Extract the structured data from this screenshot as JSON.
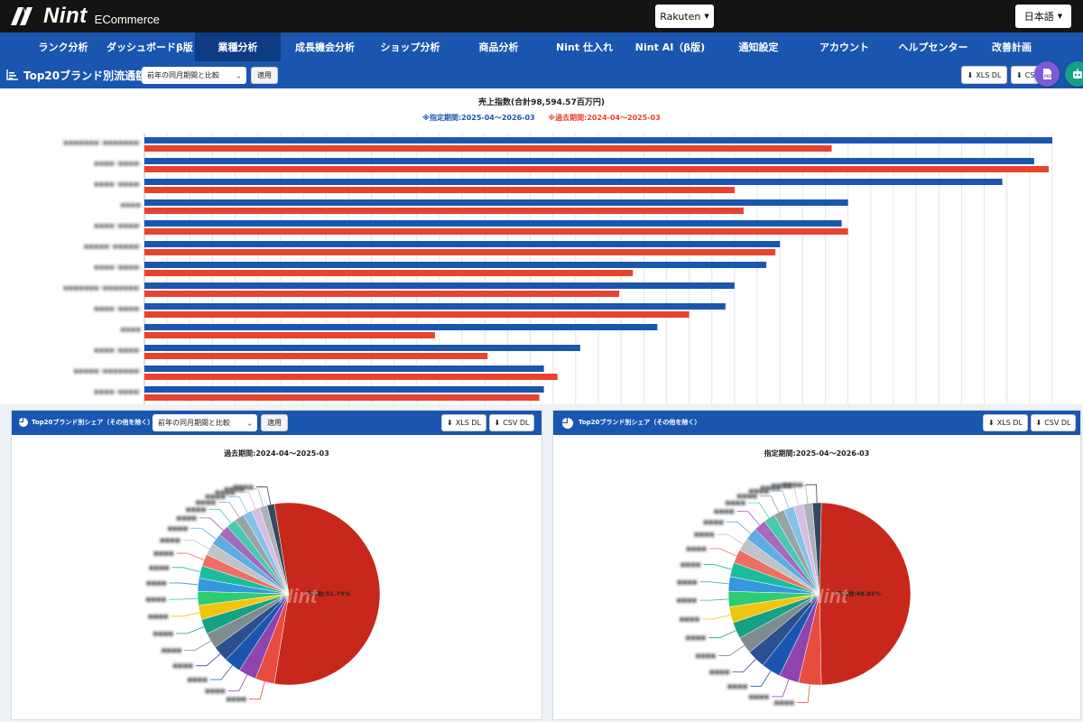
{
  "header": {
    "logo_text": "Nint",
    "logo_sub": "ECommerce",
    "mall_label": "Rakuten",
    "lang_label": "日本語"
  },
  "nav": [
    {
      "label": "ランク分析",
      "active": false
    },
    {
      "label": "ダッシュボードβ版",
      "active": false
    },
    {
      "label": "業種分析",
      "active": true
    },
    {
      "label": "成長機会分析",
      "active": false
    },
    {
      "label": "ショップ分析",
      "active": false
    },
    {
      "label": "商品分析",
      "active": false
    },
    {
      "label": "Nint 仕入れ",
      "active": false
    },
    {
      "label": "Nint AI（β版)",
      "active": false
    },
    {
      "label": "通知設定",
      "active": false
    },
    {
      "label": "アカウント",
      "active": false
    },
    {
      "label": "ヘルプセンター",
      "active": false
    },
    {
      "label": "改善計画",
      "active": false
    }
  ],
  "main": {
    "title": "Top20ブランド別流通額",
    "compare_select": "前年の同月期間と比較",
    "apply_label": "適用",
    "xls_label": "XLS DL",
    "csv_label": "CSV DL",
    "pdf_icon": "pdf-icon",
    "bot_icon": "robot-icon",
    "accent": "#1a56b0"
  },
  "chart_data": [
    {
      "type": "bar",
      "title": "売上指数(合計98,594.57百万円)",
      "legend_current": "※指定期間:2025-04～2026-03",
      "legend_past": "※過去期間:2024-04～2025-03",
      "categories": [
        "■■■■■■■ (■■■■■■■)",
        "■■■■ (■■■■)",
        "■■■■ (■■■■)",
        "■■■■",
        "■■■■ (■■■■)",
        "■■■■■ (■■■■■)",
        "■■■■ (■■■■)",
        "■■■■■■■ (■■■■■■■)",
        "■■■■ (■■■■)",
        "■■■■",
        "■■■■ (■■■■)",
        "■■■■■ (■■■■■■■)",
        "■■■■ (■■■■)"
      ],
      "series": [
        {
          "name": "指定期間",
          "color": "#1a56b0",
          "values": [
            100,
            98,
            94.5,
            77.5,
            76.8,
            70,
            68.5,
            65,
            64,
            56.5,
            48,
            44,
            44
          ]
        },
        {
          "name": "過去期間",
          "color": "#e8432f",
          "values": [
            75.7,
            99.6,
            65,
            66,
            77.5,
            69.5,
            53.8,
            52.3,
            60,
            32,
            37.8,
            45.5,
            43.5
          ]
        }
      ],
      "xlim": [
        0,
        100
      ],
      "grid": true
    },
    {
      "type": "pie",
      "title": "過去期間:2024-04～2025-03",
      "labels": [
        "その他",
        "■■■■",
        "■■■■",
        "■■■■",
        "■■■■",
        "■■■■",
        "■■■■",
        "■■■■",
        "■■■■",
        "■■■■",
        "■■■■",
        "■■■■",
        "■■■■",
        "■■■■",
        "■■■■",
        "■■■■",
        "■■■■",
        "■■■■",
        "■■■■",
        "■■■■",
        "■■■■"
      ],
      "values": [
        51.79,
        3.2,
        3.0,
        2.8,
        2.7,
        2.6,
        2.5,
        2.4,
        2.3,
        2.2,
        2.1,
        2.0,
        2.0,
        1.9,
        1.8,
        1.7,
        1.6,
        1.5,
        1.4,
        1.3,
        1.21
      ],
      "visible_label": "その他:51.79%"
    },
    {
      "type": "pie",
      "title": "指定期間:2025-04～2026-03",
      "labels": [
        "その他",
        "■■■■",
        "■■■■",
        "■■■■",
        "■■■■",
        "■■■■",
        "■■■■",
        "■■■■",
        "■■■■",
        "■■■■",
        "■■■■",
        "■■■■",
        "■■■■",
        "■■■■",
        "■■■■",
        "■■■■",
        "■■■■",
        "■■■■",
        "■■■■",
        "■■■■",
        "■■■■"
      ],
      "values": [
        48.85,
        4.0,
        3.5,
        3.4,
        3.2,
        3.0,
        2.9,
        2.8,
        2.7,
        2.6,
        2.5,
        2.4,
        2.3,
        2.2,
        2.1,
        2.0,
        1.9,
        1.8,
        1.7,
        1.6,
        1.55
      ],
      "visible_label": "その他:48.85%"
    }
  ],
  "left_panel": {
    "title": "Top20ブランド別シェア（その他を除く）",
    "compare_select": "前年の同月期間と比較",
    "apply_label": "適用",
    "xls_label": "XLS DL",
    "csv_label": "CSV DL"
  },
  "right_panel": {
    "title": "Top20ブランド別シェア（その他を除く）",
    "xls_label": "XLS DL",
    "csv_label": "CSV DL"
  },
  "pie_colors": [
    "#c8281c",
    "#e74c3c",
    "#8e44ad",
    "#1a56b0",
    "#2c4f8f",
    "#7f8c8d",
    "#16a085",
    "#f1c40f",
    "#2ecc71",
    "#3498db",
    "#1abc9c",
    "#ec7063",
    "#bdc3c7",
    "#5dade2",
    "#a569bd",
    "#48c9b0",
    "#95a5a6",
    "#85c1e9",
    "#d7bde2",
    "#abb2b9",
    "#34495e"
  ],
  "watermark": "Nint"
}
